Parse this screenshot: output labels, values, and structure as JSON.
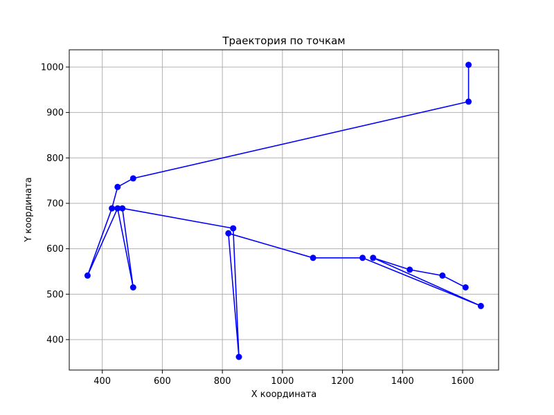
{
  "chart_data": {
    "type": "line",
    "title": "Траектория по точкам",
    "xlabel": "X координата",
    "ylabel": "Y координата",
    "xlim": [
      290,
      1720
    ],
    "ylim": [
      333,
      1038
    ],
    "xticks": [
      400,
      600,
      800,
      1000,
      1200,
      1400,
      1600
    ],
    "yticks": [
      400,
      500,
      600,
      700,
      800,
      900,
      1000
    ],
    "grid": true,
    "color": "#0000ff",
    "marker": "circle",
    "series": [
      {
        "points": [
          [
            1620,
            1005
          ],
          [
            1620,
            924
          ],
          [
            503,
            755
          ],
          [
            451,
            736
          ],
          [
            432,
            689
          ],
          [
            351,
            541
          ],
          [
            451,
            689
          ],
          [
            503,
            515
          ],
          [
            467,
            689
          ],
          [
            836,
            645
          ],
          [
            855,
            362
          ],
          [
            820,
            634
          ],
          [
            1102,
            580
          ],
          [
            1267,
            580
          ],
          [
            1661,
            474
          ],
          [
            1302,
            580
          ],
          [
            1424,
            554
          ],
          [
            1533,
            541
          ],
          [
            1610,
            515
          ]
        ]
      }
    ]
  }
}
